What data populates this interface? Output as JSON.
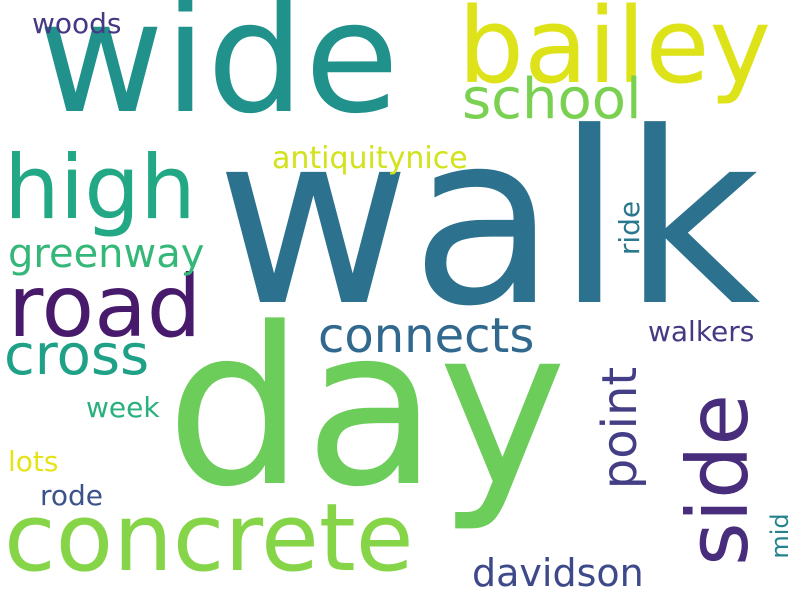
{
  "word_cloud": {
    "words": [
      {
        "key": "walk",
        "text": "walk",
        "color": "#2c728e",
        "orientation": "horizontal"
      },
      {
        "key": "day",
        "text": "day",
        "color": "#6ccd5a",
        "orientation": "horizontal"
      },
      {
        "key": "wide",
        "text": "wide",
        "color": "#21918c",
        "orientation": "horizontal"
      },
      {
        "key": "bailey",
        "text": "bailey",
        "color": "#dde318",
        "orientation": "horizontal"
      },
      {
        "key": "concrete",
        "text": "concrete",
        "color": "#86d549",
        "orientation": "horizontal"
      },
      {
        "key": "high",
        "text": "high",
        "color": "#22a884",
        "orientation": "horizontal"
      },
      {
        "key": "road",
        "text": "road",
        "color": "#481a6c",
        "orientation": "horizontal"
      },
      {
        "key": "side",
        "text": "side",
        "color": "#472d7b",
        "orientation": "vertical"
      },
      {
        "key": "school",
        "text": "school",
        "color": "#7ad151",
        "orientation": "horizontal"
      },
      {
        "key": "cross",
        "text": "cross",
        "color": "#1fa188",
        "orientation": "horizontal"
      },
      {
        "key": "connects",
        "text": "connects",
        "color": "#31688e",
        "orientation": "horizontal"
      },
      {
        "key": "point",
        "text": "point",
        "color": "#433e85",
        "orientation": "vertical"
      },
      {
        "key": "davidson",
        "text": "davidson",
        "color": "#3e4989",
        "orientation": "horizontal"
      },
      {
        "key": "greenway",
        "text": "greenway",
        "color": "#35b779",
        "orientation": "horizontal"
      },
      {
        "key": "antiquitynice",
        "text": "antiquitynice",
        "color": "#d2e21b",
        "orientation": "horizontal"
      },
      {
        "key": "walkers",
        "text": "walkers",
        "color": "#443983",
        "orientation": "horizontal"
      },
      {
        "key": "woods",
        "text": "woods",
        "color": "#443983",
        "orientation": "horizontal"
      },
      {
        "key": "week",
        "text": "week",
        "color": "#2ab07f",
        "orientation": "horizontal"
      },
      {
        "key": "ride",
        "text": "ride",
        "color": "#2a788e",
        "orientation": "vertical"
      },
      {
        "key": "lots",
        "text": "lots",
        "color": "#e5e419",
        "orientation": "horizontal"
      },
      {
        "key": "rode",
        "text": "rode",
        "color": "#3b528b",
        "orientation": "horizontal"
      },
      {
        "key": "mid",
        "text": "mid",
        "color": "#25838e",
        "orientation": "vertical"
      }
    ]
  }
}
